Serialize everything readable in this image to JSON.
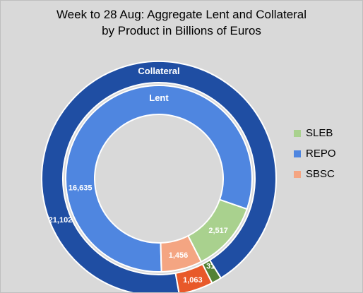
{
  "chart_data": {
    "type": "pie",
    "variant": "nested-donut",
    "title_line1": "Week to 28 Aug:  Aggregate Lent and Collateral",
    "title_line2": "by Product in Billions of Euros",
    "rings": [
      {
        "name": "Collateral",
        "slices": [
          {
            "category": "SLEB",
            "value": 310,
            "label": "310",
            "color": "#548235"
          },
          {
            "category": "REPO",
            "value": 21102,
            "label": "21,102",
            "color": "#1f4ea3"
          },
          {
            "category": "SBSC",
            "value": 1063,
            "label": "1,063",
            "color": "#e8592a"
          }
        ]
      },
      {
        "name": "Lent",
        "slices": [
          {
            "category": "SLEB",
            "value": 2517,
            "label": "2,517",
            "color": "#a9d18e"
          },
          {
            "category": "REPO",
            "value": 16635,
            "label": "16,635",
            "color": "#4f86e0"
          },
          {
            "category": "SBSC",
            "value": 1456,
            "label": "1,456",
            "color": "#f4a582"
          }
        ]
      }
    ],
    "legend": {
      "position": "right",
      "entries": [
        {
          "label": "SLEB",
          "color": "#a9d18e"
        },
        {
          "label": "REPO",
          "color": "#4f86e0"
        },
        {
          "label": "SBSC",
          "color": "#f4a582"
        }
      ]
    }
  }
}
